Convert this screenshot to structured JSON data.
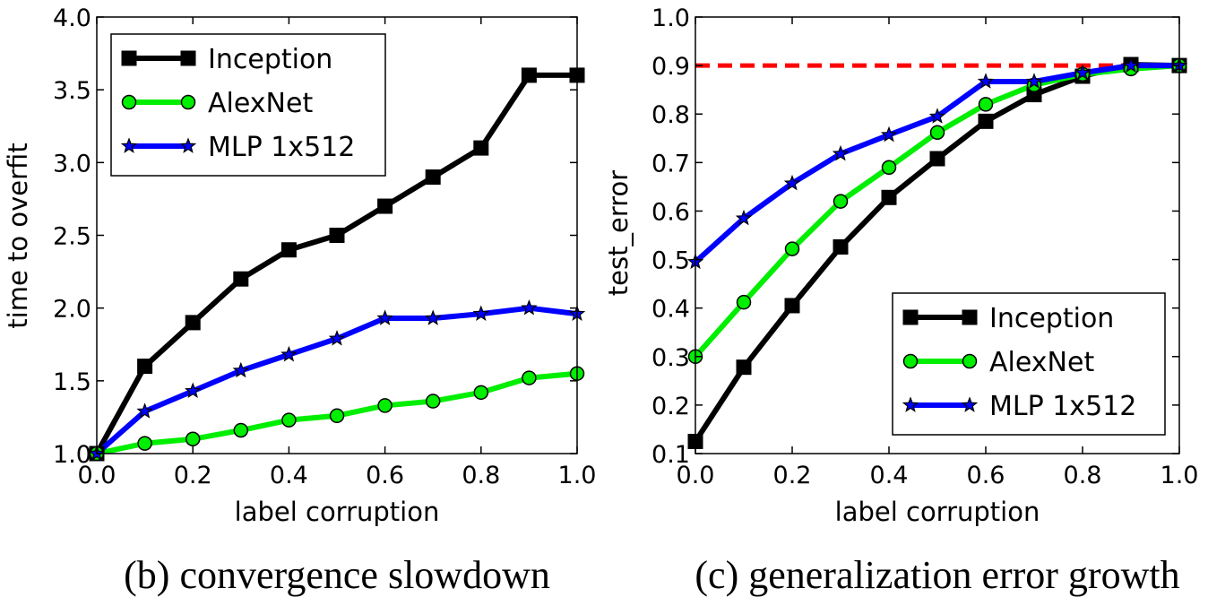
{
  "chart_data": [
    {
      "type": "line",
      "caption": "(b) convergence slowdown",
      "xlabel": "label corruption",
      "ylabel": "time to overfit",
      "xlim": [
        0.0,
        1.0
      ],
      "ylim": [
        1.0,
        4.0
      ],
      "xticks": [
        "0.0",
        "0.2",
        "0.4",
        "0.6",
        "0.8",
        "1.0"
      ],
      "yticks": [
        "1.0",
        "1.5",
        "2.0",
        "2.5",
        "3.0",
        "3.5",
        "4.0"
      ],
      "legend_position": "top-left",
      "x": [
        0.0,
        0.1,
        0.2,
        0.3,
        0.4,
        0.5,
        0.6,
        0.7,
        0.8,
        0.9,
        1.0
      ],
      "series": [
        {
          "name": "Inception",
          "color": "#000000",
          "marker": "square",
          "values": [
            1.0,
            1.6,
            1.9,
            2.2,
            2.4,
            2.5,
            2.7,
            2.9,
            3.1,
            3.6,
            3.6
          ]
        },
        {
          "name": "AlexNet",
          "color": "#00ee00",
          "marker": "circle",
          "values": [
            1.0,
            1.07,
            1.1,
            1.16,
            1.23,
            1.26,
            1.33,
            1.36,
            1.42,
            1.52,
            1.55
          ]
        },
        {
          "name": "MLP 1x512",
          "color": "#0000ff",
          "marker": "star",
          "values": [
            1.0,
            1.29,
            1.43,
            1.57,
            1.68,
            1.79,
            1.93,
            1.93,
            1.96,
            2.0,
            1.96
          ]
        }
      ]
    },
    {
      "type": "line",
      "caption": "(c) generalization error growth",
      "xlabel": "label corruption",
      "ylabel": "test_error",
      "xlim": [
        0.0,
        1.0
      ],
      "ylim": [
        0.1,
        1.0
      ],
      "xticks": [
        "0.0",
        "0.2",
        "0.4",
        "0.6",
        "0.8",
        "1.0"
      ],
      "yticks": [
        "0.1",
        "0.2",
        "0.3",
        "0.4",
        "0.5",
        "0.6",
        "0.7",
        "0.8",
        "0.9",
        "1.0"
      ],
      "legend_position": "bottom-right",
      "reference_line": {
        "y": 0.9,
        "color": "#ff0000",
        "style": "dashed"
      },
      "x": [
        0.0,
        0.1,
        0.2,
        0.3,
        0.4,
        0.5,
        0.6,
        0.7,
        0.8,
        0.9,
        1.0
      ],
      "series": [
        {
          "name": "Inception",
          "color": "#000000",
          "marker": "square",
          "values": [
            0.125,
            0.278,
            0.405,
            0.526,
            0.628,
            0.708,
            0.785,
            0.84,
            0.878,
            0.902,
            0.9
          ]
        },
        {
          "name": "AlexNet",
          "color": "#00ee00",
          "marker": "circle",
          "values": [
            0.3,
            0.412,
            0.522,
            0.62,
            0.69,
            0.762,
            0.82,
            0.86,
            0.882,
            0.893,
            0.9
          ]
        },
        {
          "name": "MLP 1x512",
          "color": "#0000ff",
          "marker": "star",
          "values": [
            0.495,
            0.585,
            0.657,
            0.718,
            0.757,
            0.795,
            0.867,
            0.867,
            0.885,
            0.9,
            0.9
          ]
        }
      ]
    }
  ]
}
